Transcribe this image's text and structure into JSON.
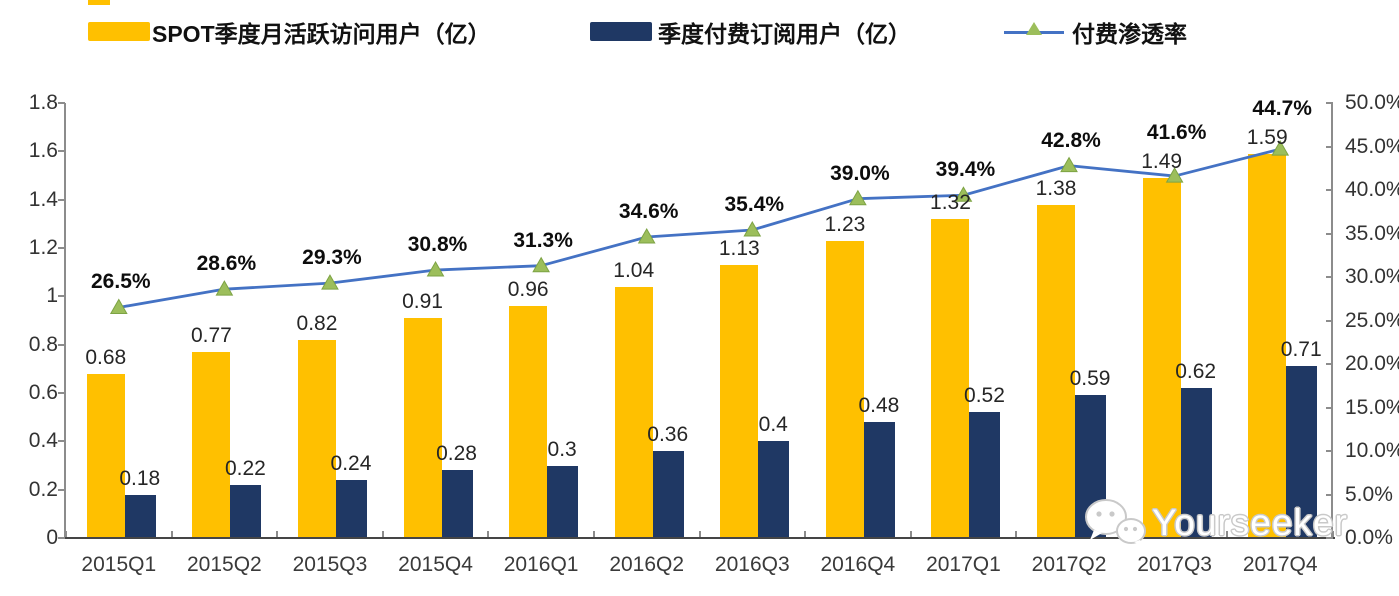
{
  "legend": {
    "items": [
      {
        "label": "SPOT季度月活跃访问用户（亿）",
        "swatch_color": "#FFC000",
        "type": "bar"
      },
      {
        "label": "季度付费订阅用户（亿）",
        "swatch_color": "#1F3864",
        "type": "bar"
      },
      {
        "label": "付费渗透率",
        "line_color": "#4472C4",
        "marker_color": "#9CBE5B",
        "type": "line"
      }
    ]
  },
  "watermark": {
    "text": "Yourseeker",
    "icon": "wechat-icon"
  },
  "chart_data": {
    "type": "bar",
    "subtype": "grouped-bars-with-line",
    "title": "",
    "categories": [
      "2015Q1",
      "2015Q2",
      "2015Q3",
      "2015Q4",
      "2016Q1",
      "2016Q2",
      "2016Q3",
      "2016Q4",
      "2017Q1",
      "2017Q2",
      "2017Q3",
      "2017Q4"
    ],
    "series": [
      {
        "name": "SPOT季度月活跃访问用户（亿）",
        "type": "bar",
        "axis": "left",
        "color": "#FFC000",
        "values": [
          0.68,
          0.77,
          0.82,
          0.91,
          0.96,
          1.04,
          1.13,
          1.23,
          1.32,
          1.38,
          1.49,
          1.59
        ],
        "labels": [
          "0.68",
          "0.77",
          "0.82",
          "0.91",
          "0.96",
          "1.04",
          "1.13",
          "1.23",
          "1.32",
          "1.38",
          "1.49",
          "1.59"
        ]
      },
      {
        "name": "季度付费订阅用户（亿）",
        "type": "bar",
        "axis": "left",
        "color": "#1F3864",
        "values": [
          0.18,
          0.22,
          0.24,
          0.28,
          0.3,
          0.36,
          0.4,
          0.48,
          0.52,
          0.59,
          0.62,
          0.71
        ],
        "labels": [
          "0.18",
          "0.22",
          "0.24",
          "0.28",
          "0.3",
          "0.36",
          "0.4",
          "0.48",
          "0.52",
          "0.59",
          "0.62",
          "0.71"
        ]
      },
      {
        "name": "付费渗透率",
        "type": "line",
        "axis": "right",
        "color": "#4472C4",
        "marker": "triangle",
        "marker_color": "#9CBE5B",
        "marker_edge": "#7da344",
        "values": [
          26.5,
          28.6,
          29.3,
          30.8,
          31.3,
          34.6,
          35.4,
          39.0,
          39.4,
          42.8,
          41.6,
          44.7
        ],
        "labels": [
          "26.5%",
          "28.6%",
          "29.3%",
          "30.8%",
          "31.3%",
          "34.6%",
          "35.4%",
          "39.0%",
          "39.4%",
          "42.8%",
          "41.6%",
          "44.7%"
        ]
      }
    ],
    "left_axis": {
      "min": 0,
      "max": 1.8,
      "tick_step": 0.2,
      "tick_labels": [
        "0",
        "0.2",
        "0.4",
        "0.6",
        "0.8",
        "1",
        "1.2",
        "1.4",
        "1.6",
        "1.8"
      ]
    },
    "right_axis": {
      "min": 0,
      "max": 50,
      "tick_step": 5,
      "tick_labels": [
        "0.0%",
        "5.0%",
        "10.0%",
        "15.0%",
        "20.0%",
        "25.0%",
        "30.0%",
        "35.0%",
        "40.0%",
        "45.0%",
        "50.0%"
      ]
    },
    "grid": false,
    "legend_position": "top"
  }
}
